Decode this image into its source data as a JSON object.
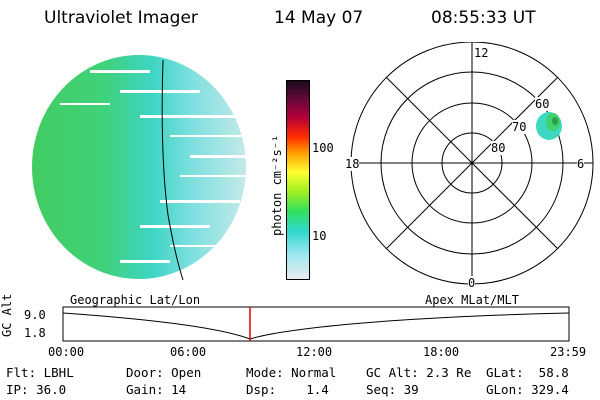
{
  "header": {
    "instrument": "Ultraviolet Imager",
    "date": "14 May 07",
    "time": "08:55:33 UT"
  },
  "colorbar": {
    "unit_label": "photon cm⁻²s⁻¹",
    "tick_100": "100",
    "tick_10": "10"
  },
  "polar_plot": {
    "mlt_labels": {
      "top": "12",
      "left": "18",
      "right": "6",
      "bottom": "0"
    },
    "mlat_labels": [
      "60",
      "70",
      "80"
    ]
  },
  "orbit_panel": {
    "left_title": "Geographic Lat/Lon",
    "right_title": "Apex MLat/MLT",
    "y_axis_label": "GC Alt",
    "y_max": "9.0",
    "y_min": "1.8",
    "time_ticks": [
      "00:00",
      "06:00",
      "12:00",
      "18:00",
      "23:59"
    ]
  },
  "info": {
    "flt": "Flt: LBHL",
    "ip": "IP: 36.0",
    "door": "Door: Open",
    "gain": "Gain: 14",
    "mode": "Mode: Normal",
    "dsp": "Dsp:    1.4",
    "gc_alt": "GC Alt: 2.3 Re",
    "seq": "Seq: 39",
    "glat": "GLat:  58.8",
    "glon": "GLon: 329.4"
  },
  "colors": {
    "disk_green": "#3fd06a",
    "disk_cyan": "#3ed8d8",
    "disk_pale": "#c6eae6",
    "marker_red": "#e00000"
  }
}
